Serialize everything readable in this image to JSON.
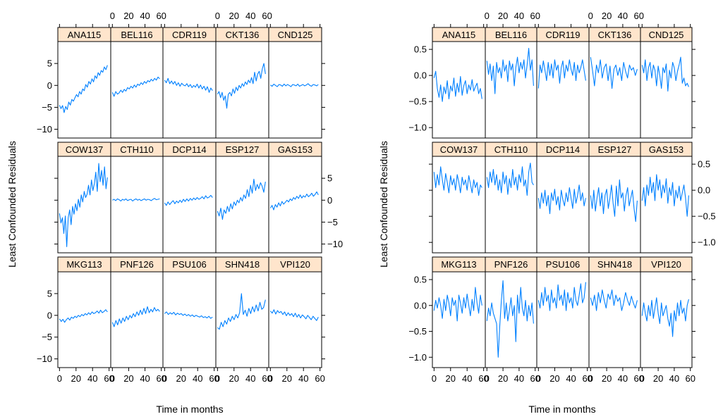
{
  "chart_data": [
    {
      "type": "line",
      "layout": "lattice trellis, 5 columns x 3 rows, shared axes",
      "xlabel": "Time in months",
      "ylabel": "Least Confounded Residuals",
      "xlim": [
        -2,
        62
      ],
      "ylim": [
        -12,
        10
      ],
      "x_ticks": [
        0,
        20,
        40,
        60
      ],
      "x_tick_labels": [
        "0",
        "20",
        "40",
        "60"
      ],
      "y_ticks": [
        -10,
        -5,
        0,
        5
      ],
      "y_tick_labels": [
        "−10",
        "−5",
        "0",
        "5"
      ],
      "line_color": "#0080ff",
      "strip_color": "#ffe5cc",
      "panels": [
        {
          "name": "ANA115",
          "values": [
            -4.5,
            -5.3,
            -4.6,
            -6.2,
            -4.8,
            -5.5,
            -3.8,
            -4.5,
            -3.2,
            -3.6,
            -2.8,
            -2.1,
            -2.6,
            -1.4,
            -2.0,
            -0.8,
            -1.2,
            0.2,
            -0.4,
            0.9,
            0.3,
            1.5,
            0.8,
            2.2,
            1.6,
            2.9,
            2.3,
            3.4,
            3.0,
            4.2,
            3.6,
            4.6
          ]
        },
        {
          "name": "BEL116",
          "values": [
            -1.6,
            -2.5,
            -1.4,
            -2.0,
            -1.7,
            -1.1,
            -1.6,
            -0.9,
            -1.3,
            -0.5,
            -0.8,
            -0.2,
            -0.6,
            0.1,
            -0.4,
            0.3,
            0.0,
            0.6,
            0.2,
            0.9,
            0.5,
            1.1,
            0.8,
            1.4,
            1.0,
            1.6,
            1.2,
            1.9,
            1.5
          ]
        },
        {
          "name": "CDR119",
          "values": [
            1.2,
            0.6,
            1.6,
            0.4,
            1.0,
            0.3,
            0.9,
            0.0,
            0.6,
            -0.2,
            0.5,
            0.1,
            -0.1,
            0.4,
            -0.3,
            0.2,
            -0.5,
            0.0,
            -0.4,
            0.3,
            -0.6,
            0.1,
            -0.8,
            -0.2,
            -1.1,
            -0.3,
            -1.6,
            -0.6,
            -1.2
          ]
        },
        {
          "name": "CKT136",
          "values": [
            -2.0,
            -1.4,
            -2.8,
            -1.6,
            -3.4,
            -2.4,
            -5.2,
            -2.0,
            -1.6,
            -2.4,
            -0.8,
            -1.8,
            -0.4,
            -1.2,
            0.0,
            -0.6,
            0.4,
            -0.2,
            0.8,
            0.2,
            1.2,
            0.6,
            1.8,
            0.4,
            3.0,
            1.0,
            2.6,
            3.2,
            1.6,
            3.8,
            5.0,
            2.6
          ]
        },
        {
          "name": "CND125",
          "values": [
            0.1,
            -0.2,
            0.3,
            0.0,
            -0.3,
            0.2,
            0.1,
            -0.2,
            0.3,
            -0.1,
            0.2,
            0.0,
            -0.3,
            0.2,
            0.1,
            -0.1,
            0.3,
            -0.2,
            0.0,
            0.2,
            -0.1,
            0.1,
            0.4,
            0.0,
            -0.2,
            0.2,
            0.1,
            -0.1,
            0.2
          ]
        },
        {
          "name": "COW137",
          "values": [
            -3.0,
            -5.2,
            -4.0,
            -7.6,
            -3.6,
            -10.6,
            -4.0,
            -2.2,
            -5.6,
            -1.4,
            -3.2,
            -0.8,
            -2.4,
            0.2,
            -1.6,
            1.2,
            -0.4,
            2.0,
            0.6,
            1.4,
            3.4,
            1.2,
            4.6,
            2.2,
            3.8,
            6.4,
            2.0,
            8.4,
            4.2,
            6.8,
            3.4,
            7.6,
            2.6,
            5.2
          ]
        },
        {
          "name": "CTH110",
          "values": [
            0.0,
            0.2,
            -0.1,
            0.3,
            0.1,
            -0.2,
            0.2,
            0.0,
            0.3,
            -0.1,
            0.1,
            0.2,
            -0.2,
            0.1,
            0.3,
            0.0,
            0.2,
            -0.1,
            0.1,
            0.3,
            0.0,
            0.2,
            0.1,
            -0.1,
            0.2,
            0.4,
            0.1,
            0.2,
            0.3
          ]
        },
        {
          "name": "DCP114",
          "values": [
            -0.6,
            -1.2,
            -0.4,
            -1.0,
            -0.5,
            -0.1,
            -0.8,
            -0.2,
            -0.6,
            0.0,
            -0.5,
            0.2,
            -0.3,
            0.3,
            -0.2,
            0.4,
            0.0,
            0.5,
            0.1,
            0.6,
            0.2,
            0.4,
            0.8,
            0.3,
            1.0,
            0.5,
            0.7,
            1.1,
            0.6
          ]
        },
        {
          "name": "ESP127",
          "values": [
            -2.5,
            -3.6,
            -1.8,
            -4.4,
            -2.2,
            -3.0,
            -1.4,
            -2.6,
            -0.8,
            -2.0,
            -0.4,
            -1.2,
            0.0,
            -0.6,
            0.6,
            -0.2,
            1.2,
            0.4,
            2.4,
            0.8,
            3.4,
            1.6,
            4.8,
            2.2,
            3.6,
            2.6,
            4.0,
            3.2,
            1.8,
            4.2
          ]
        },
        {
          "name": "GAS153",
          "values": [
            -1.8,
            -1.2,
            -2.2,
            -1.0,
            -1.6,
            -0.6,
            -1.3,
            -0.3,
            -0.9,
            -0.5,
            0.0,
            -0.4,
            0.3,
            -0.1,
            0.6,
            0.2,
            0.9,
            0.4,
            1.2,
            0.5,
            1.0,
            0.7,
            1.4,
            0.8,
            1.1,
            1.6,
            0.9,
            1.3,
            1.9,
            1.2
          ]
        },
        {
          "name": "MKG113",
          "values": [
            -0.8,
            -1.4,
            -0.9,
            -1.6,
            -1.0,
            -0.6,
            -1.1,
            -0.4,
            -0.7,
            -0.2,
            -0.5,
            0.0,
            -0.3,
            0.2,
            -0.1,
            0.4,
            0.1,
            0.6,
            0.2,
            0.8,
            0.4,
            0.6,
            1.0,
            0.5,
            1.2,
            0.6,
            0.9,
            1.3,
            0.8
          ]
        },
        {
          "name": "PNF126",
          "values": [
            -1.6,
            -2.6,
            -1.2,
            -2.2,
            -0.8,
            -1.8,
            -0.6,
            -1.4,
            -0.2,
            -1.0,
            0.0,
            -0.6,
            0.4,
            -0.3,
            0.8,
            0.0,
            1.2,
            0.2,
            1.6,
            0.4,
            2.0,
            0.6,
            1.4,
            0.8,
            1.8,
            1.0,
            1.4,
            0.9
          ]
        },
        {
          "name": "PSU106",
          "values": [
            0.4,
            0.8,
            0.2,
            0.6,
            0.3,
            0.7,
            0.1,
            0.5,
            0.2,
            0.4,
            0.0,
            0.3,
            -0.1,
            0.2,
            -0.2,
            0.1,
            -0.3,
            0.0,
            -0.2,
            -0.4,
            -0.1,
            -0.5,
            -0.3,
            -0.6,
            -0.2,
            -0.7,
            -0.4
          ]
        },
        {
          "name": "SHN418",
          "values": [
            -2.8,
            -3.2,
            -1.6,
            -2.6,
            -1.2,
            -2.0,
            -0.6,
            -1.4,
            -0.2,
            -1.0,
            0.2,
            -0.6,
            0.6,
            5.0,
            0.2,
            1.2,
            -0.2,
            1.6,
            0.4,
            2.0,
            0.8,
            2.4,
            1.0,
            3.0,
            1.4,
            1.8,
            3.6
          ]
        },
        {
          "name": "VPI120",
          "values": [
            1.0,
            0.5,
            1.3,
            0.3,
            1.1,
            0.6,
            0.9,
            0.2,
            0.8,
            -0.1,
            0.6,
            0.0,
            0.4,
            -0.3,
            0.5,
            -0.4,
            0.2,
            -0.6,
            0.1,
            -0.3,
            -0.8,
            0.0,
            -0.5,
            -1.0,
            -0.2,
            -0.7,
            -1.2,
            -0.4
          ]
        }
      ]
    },
    {
      "type": "line",
      "layout": "lattice trellis, 5 columns x 3 rows, shared axes",
      "xlabel": "Time in months",
      "ylabel": "Least Confounded Residuals",
      "xlim": [
        -2,
        62
      ],
      "ylim": [
        -1.2,
        0.65
      ],
      "x_ticks": [
        0,
        20,
        40,
        60
      ],
      "x_tick_labels": [
        "0",
        "20",
        "40",
        "60"
      ],
      "y_ticks": [
        -1.0,
        -0.5,
        0.0,
        0.5
      ],
      "y_tick_labels": [
        "−1.0",
        "−0.5",
        "0.0",
        "0.5"
      ],
      "line_color": "#0080ff",
      "strip_color": "#ffe5cc",
      "panels": [
        {
          "name": "ANA115",
          "values": [
            -0.05,
            0.08,
            -0.25,
            -0.42,
            -0.18,
            -0.5,
            -0.22,
            -0.35,
            -0.1,
            -0.45,
            -0.2,
            -0.3,
            -0.05,
            -0.4,
            -0.15,
            -0.32,
            -0.02,
            -0.38,
            -0.2,
            -0.1,
            -0.35,
            -0.18,
            -0.28,
            -0.08,
            -0.3,
            -0.22,
            -0.15,
            -0.35,
            -0.25,
            -0.45
          ]
        },
        {
          "name": "BEL116",
          "values": [
            0.28,
            0.02,
            0.22,
            -0.1,
            0.18,
            -0.35,
            0.25,
            0.05,
            0.15,
            -0.05,
            0.3,
            0.08,
            0.2,
            -0.12,
            0.28,
            0.1,
            0.22,
            -0.2,
            0.15,
            0.35,
            0.05,
            0.25,
            0.12,
            0.3,
            -0.05,
            0.2,
            0.52,
            0.1,
            0.3,
            -0.2
          ]
        },
        {
          "name": "CDR119",
          "values": [
            -0.25,
            0.2,
            0.05,
            0.28,
            0.1,
            -0.1,
            0.25,
            0.0,
            0.22,
            -0.05,
            0.3,
            0.1,
            0.2,
            -0.15,
            0.15,
            0.28,
            -0.05,
            0.2,
            0.08,
            0.3,
            0.12,
            0.0,
            0.25,
            -0.1,
            0.2,
            0.05,
            0.15,
            0.3,
            0.1,
            -0.1
          ]
        },
        {
          "name": "CKT136",
          "values": [
            0.35,
            0.1,
            -0.2,
            0.2,
            0.05,
            0.3,
            -0.05,
            0.15,
            0.22,
            -0.1,
            0.18,
            -0.25,
            0.12,
            0.2,
            0.0,
            0.15,
            -0.1,
            0.25,
            0.08,
            -0.05,
            0.2,
            0.1,
            0.15,
            0.0,
            0.12
          ]
        },
        {
          "name": "CND125",
          "values": [
            0.2,
            0.05,
            0.3,
            -0.1,
            0.15,
            0.25,
            -0.05,
            0.2,
            0.1,
            -0.2,
            0.18,
            0.0,
            -0.25,
            0.15,
            0.05,
            0.22,
            -0.3,
            0.1,
            -0.05,
            0.25,
            0.15,
            -0.1,
            0.08,
            0.2,
            0.35,
            -0.15,
            -0.05,
            -0.2,
            -0.15,
            -0.22
          ]
        },
        {
          "name": "COW137",
          "values": [
            0.35,
            0.05,
            0.3,
            0.1,
            0.45,
            0.2,
            0.0,
            0.32,
            0.15,
            -0.05,
            0.28,
            0.1,
            0.22,
            0.0,
            0.3,
            0.15,
            -0.05,
            0.25,
            0.1,
            0.2,
            0.0,
            0.28,
            0.12,
            -0.05,
            0.2,
            0.05,
            0.15,
            -0.1,
            0.1,
            0.05
          ]
        },
        {
          "name": "CTH110",
          "values": [
            0.25,
            0.05,
            0.35,
            0.15,
            0.4,
            0.1,
            0.3,
            0.0,
            0.2,
            -0.05,
            0.35,
            0.12,
            0.28,
            -0.08,
            0.22,
            0.05,
            0.4,
            0.1,
            0.25,
            0.0,
            0.3,
            0.15,
            0.45,
            0.08,
            0.2,
            -0.1,
            0.35,
            0.52,
            0.15,
            0.1
          ]
        },
        {
          "name": "DCP114",
          "values": [
            -0.15,
            -0.35,
            -0.05,
            -0.25,
            0.0,
            -0.3,
            -0.1,
            -0.45,
            -0.05,
            -0.2,
            0.02,
            -0.28,
            -0.12,
            -0.38,
            0.0,
            -0.18,
            -0.3,
            -0.05,
            -0.22,
            0.05,
            -0.15,
            -0.35,
            0.02,
            -0.25,
            -0.1,
            0.1,
            -0.2,
            -0.05,
            -0.3,
            -0.15
          ]
        },
        {
          "name": "ESP127",
          "values": [
            -0.1,
            -0.35,
            0.0,
            -0.4,
            -0.15,
            0.05,
            -0.3,
            -0.05,
            -0.45,
            -0.1,
            0.02,
            -0.35,
            -0.15,
            0.1,
            -0.25,
            -0.5,
            0.08,
            -0.3,
            0.2,
            -0.15,
            -0.05,
            -0.4,
            -0.1,
            0.05,
            -0.3,
            -0.15,
            0.0,
            -0.35,
            -0.6,
            -0.2
          ]
        },
        {
          "name": "GAS153",
          "values": [
            -0.2,
            0.05,
            -0.3,
            0.1,
            -0.1,
            0.25,
            -0.05,
            0.15,
            -0.2,
            0.3,
            0.0,
            0.2,
            -0.15,
            0.1,
            -0.05,
            0.22,
            -0.25,
            0.05,
            -0.1,
            0.15,
            -0.3,
            0.0,
            -0.15,
            0.08,
            -0.2,
            -0.05,
            0.1,
            -0.15,
            -0.5,
            -0.1
          ]
        },
        {
          "name": "MKG113",
          "values": [
            -0.1,
            0.1,
            -0.05,
            0.15,
            0.0,
            -0.25,
            0.12,
            -0.1,
            0.2,
            0.05,
            -0.2,
            0.15,
            0.0,
            0.1,
            -0.3,
            0.2,
            0.05,
            -0.15,
            0.15,
            -0.05,
            0.22,
            0.0,
            -0.2,
            0.12,
            -0.1,
            0.35,
            0.05,
            -0.15,
            0.2,
            0.0
          ]
        },
        {
          "name": "PNF126",
          "values": [
            -0.3,
            -0.05,
            -0.2,
            0.05,
            -0.15,
            -0.25,
            -0.35,
            -1.0,
            -0.4,
            0.1,
            0.48,
            -0.25,
            0.05,
            -0.3,
            -0.1,
            0.15,
            -0.2,
            0.0,
            -0.7,
            0.2,
            -0.15,
            0.35,
            -0.05,
            -0.2,
            0.1,
            -0.3,
            0.0,
            -0.2,
            0.05,
            -0.35
          ]
        },
        {
          "name": "PSU106",
          "values": [
            0.1,
            -0.05,
            0.25,
            0.0,
            0.35,
            0.08,
            0.2,
            -0.1,
            0.3,
            0.05,
            0.15,
            -0.05,
            0.4,
            0.1,
            0.2,
            0.0,
            0.3,
            -0.1,
            0.25,
            0.05,
            0.15,
            -0.05,
            0.35,
            0.1,
            0.0,
            0.2,
            0.42,
            0.05,
            0.15,
            0.45
          ]
        },
        {
          "name": "SHN418",
          "values": [
            0.15,
            0.0,
            0.2,
            -0.1,
            0.25,
            0.05,
            0.3,
            0.1,
            -0.05,
            0.22,
            0.12,
            0.3,
            0.0,
            0.2,
            0.08,
            0.15,
            -0.1,
            0.05,
            0.25,
            0.1,
            0.0,
            0.18,
            0.05,
            -0.05,
            0.1
          ]
        },
        {
          "name": "VPI120",
          "values": [
            -0.2,
            0.05,
            -0.15,
            -0.3,
            0.0,
            -0.2,
            0.1,
            -0.25,
            -0.05,
            0.15,
            -0.15,
            -0.35,
            0.05,
            -0.2,
            -0.1,
            0.0,
            -0.25,
            -0.4,
            -0.15,
            -0.6,
            -0.1,
            -0.3,
            0.05,
            -0.2,
            0.1,
            -0.15,
            -0.05,
            -0.3,
            0.0,
            0.12
          ]
        }
      ]
    }
  ]
}
